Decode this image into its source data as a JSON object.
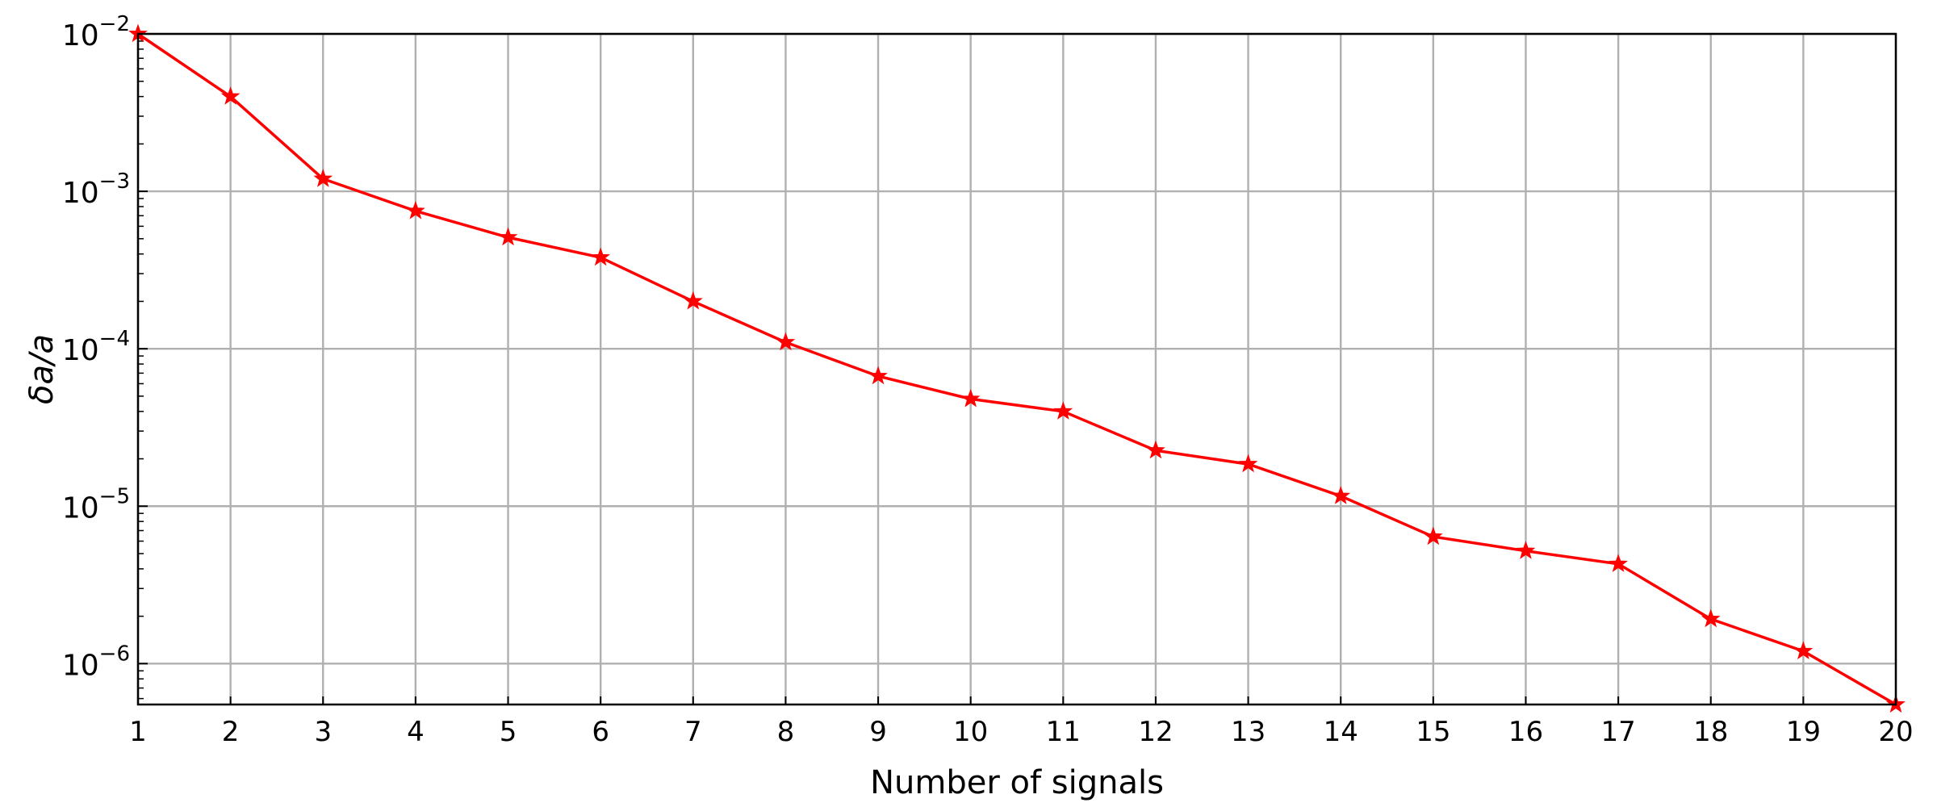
{
  "chart_data": {
    "type": "line",
    "title": "",
    "xlabel": "Number of signals",
    "ylabel": "δa/a",
    "yscale": "log",
    "xlim": [
      1,
      20
    ],
    "ylim": [
      5.5e-07,
      0.01
    ],
    "grid": true,
    "x_ticks": [
      1,
      2,
      3,
      4,
      5,
      6,
      7,
      8,
      9,
      10,
      11,
      12,
      13,
      14,
      15,
      16,
      17,
      18,
      19,
      20
    ],
    "y_ticks": [
      {
        "exp": -2,
        "value": 0.01
      },
      {
        "exp": -3,
        "value": 0.001
      },
      {
        "exp": -4,
        "value": 0.0001
      },
      {
        "exp": -5,
        "value": 1e-05
      },
      {
        "exp": -6,
        "value": 1e-06
      }
    ],
    "series": [
      {
        "color": "#ff0000",
        "marker": "star",
        "x": [
          1,
          2,
          3,
          4,
          5,
          6,
          7,
          8,
          9,
          10,
          11,
          12,
          13,
          14,
          15,
          16,
          17,
          18,
          19,
          20
        ],
        "y": [
          0.01,
          0.004,
          0.0012,
          0.00075,
          0.00051,
          0.00038,
          0.0002,
          0.00011,
          6.7e-05,
          4.8e-05,
          4e-05,
          2.26e-05,
          1.85e-05,
          1.16e-05,
          6.4e-06,
          5.2e-06,
          4.3e-06,
          1.92e-06,
          1.2e-06,
          5.5e-07
        ]
      }
    ]
  }
}
